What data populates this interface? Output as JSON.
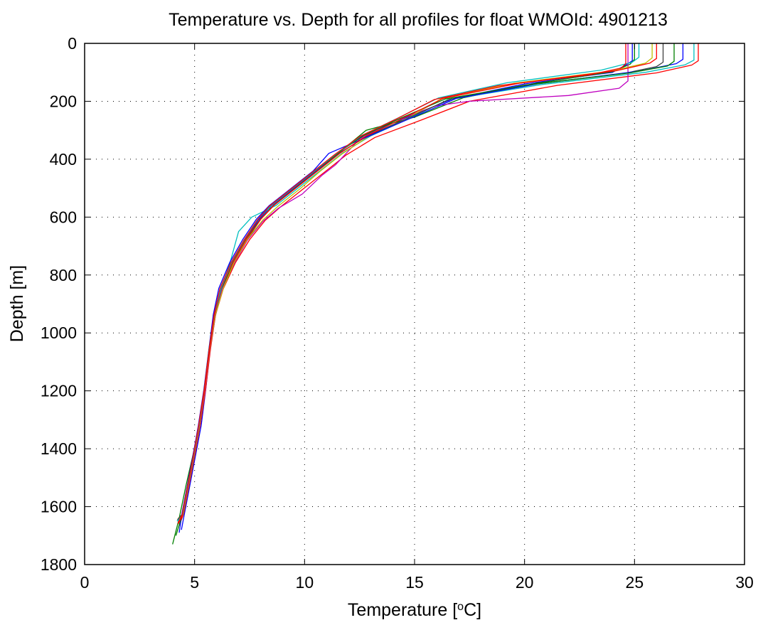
{
  "chart_data": {
    "type": "line",
    "title": "Temperature vs. Depth for all profiles for float WMOId: 4901213",
    "xlabel": {
      "prefix": "Temperature [",
      "superscript": "o",
      "suffix": "C]"
    },
    "ylabel": "Depth [m]",
    "xlim": [
      0,
      30
    ],
    "ylim": [
      0,
      1800
    ],
    "y_reversed": true,
    "x_ticks": [
      "0",
      "5",
      "10",
      "15",
      "20",
      "25",
      "30"
    ],
    "y_ticks": [
      "0",
      "200",
      "400",
      "600",
      "800",
      "1000",
      "1200",
      "1400",
      "1600",
      "1800"
    ],
    "grid": true,
    "colors": [
      "#0000ff",
      "#008000",
      "#ff0000",
      "#00bfbf",
      "#bf00bf",
      "#bfbf00",
      "#404040"
    ],
    "series": [
      {
        "color": "#0000ff",
        "x": [
          24.9,
          24.9,
          24.6,
          24.0,
          20.0,
          16.8,
          14.5,
          12.6,
          11.5,
          10.5,
          9.5,
          8.5,
          7.9,
          7.3,
          6.7,
          6.2,
          5.9,
          5.7,
          5.5,
          5.3,
          5.05,
          4.8,
          4.55,
          4.4
        ],
        "y": [
          0,
          60,
          75,
          100,
          140,
          190,
          260,
          320,
          380,
          440,
          500,
          560,
          610,
          680,
          760,
          850,
          940,
          1060,
          1200,
          1320,
          1420,
          1520,
          1620,
          1680
        ]
      },
      {
        "color": "#008000",
        "x": [
          25.0,
          25.0,
          24.8,
          24.0,
          20.5,
          17.2,
          15.0,
          12.8,
          11.6,
          10.6,
          9.6,
          8.6,
          8.0,
          7.4,
          6.8,
          6.25,
          5.95,
          5.7,
          5.45,
          5.2,
          4.9,
          4.6,
          4.3,
          4.0
        ],
        "y": [
          0,
          55,
          72,
          98,
          138,
          188,
          255,
          300,
          375,
          438,
          498,
          560,
          608,
          675,
          755,
          845,
          935,
          1055,
          1195,
          1325,
          1430,
          1530,
          1640,
          1730
        ]
      },
      {
        "color": "#ff0000",
        "x": [
          27.9,
          27.9,
          27.6,
          26.0,
          21.5,
          17.5,
          15.3,
          13.2,
          11.9,
          10.9,
          9.9,
          8.9,
          8.2,
          7.5,
          6.85,
          6.3,
          5.95,
          5.72,
          5.5,
          5.25,
          5.0,
          4.75,
          4.5,
          4.3
        ],
        "y": [
          0,
          60,
          75,
          102,
          145,
          200,
          265,
          325,
          385,
          445,
          505,
          565,
          612,
          678,
          758,
          848,
          938,
          1058,
          1198,
          1320,
          1425,
          1525,
          1625,
          1665
        ]
      },
      {
        "color": "#00bfbf",
        "x": [
          27.7,
          27.7,
          27.3,
          25.5,
          20.8,
          16.5,
          14.8,
          13.0,
          11.7,
          10.7,
          9.7,
          8.7,
          7.6,
          7.0,
          6.6,
          6.2,
          5.9,
          5.68,
          5.45,
          5.2,
          4.95,
          4.7,
          4.45,
          4.2
        ],
        "y": [
          0,
          58,
          74,
          100,
          142,
          195,
          258,
          320,
          380,
          440,
          500,
          560,
          600,
          650,
          760,
          850,
          940,
          1060,
          1200,
          1325,
          1430,
          1530,
          1630,
          1650
        ]
      },
      {
        "color": "#bf00bf",
        "x": [
          24.7,
          24.7,
          24.3,
          22.0,
          17.5,
          16.0,
          14.0,
          12.5,
          11.4,
          10.8,
          9.9,
          8.8,
          8.1,
          7.4,
          6.8,
          6.25,
          5.95,
          5.7,
          5.48,
          5.22,
          4.98,
          4.72,
          4.48,
          4.25
        ],
        "y": [
          0,
          130,
          155,
          180,
          200,
          215,
          270,
          330,
          420,
          455,
          520,
          570,
          615,
          680,
          760,
          850,
          940,
          1060,
          1200,
          1320,
          1425,
          1525,
          1625,
          1655
        ]
      },
      {
        "color": "#bfbf00",
        "x": [
          25.8,
          25.8,
          25.5,
          24.0,
          19.5,
          16.2,
          14.6,
          12.9,
          11.7,
          10.7,
          9.8,
          8.8,
          8.1,
          7.4,
          6.8,
          6.3,
          5.95,
          5.7,
          5.47,
          5.22,
          4.97,
          4.72,
          4.47,
          4.25
        ],
        "y": [
          0,
          50,
          68,
          95,
          138,
          192,
          262,
          322,
          382,
          442,
          502,
          562,
          610,
          676,
          756,
          846,
          936,
          1056,
          1196,
          1322,
          1428,
          1528,
          1628,
          1640
        ]
      },
      {
        "color": "#404040",
        "x": [
          26.3,
          26.3,
          26.0,
          24.5,
          20.0,
          16.6,
          14.7,
          12.9,
          11.6,
          10.6,
          9.6,
          8.6,
          8.0,
          7.35,
          6.75,
          6.22,
          5.92,
          5.68,
          5.46,
          5.21,
          4.96,
          4.71,
          4.46,
          4.22
        ],
        "y": [
          0,
          65,
          80,
          104,
          144,
          193,
          258,
          318,
          378,
          438,
          498,
          558,
          606,
          672,
          752,
          842,
          932,
          1052,
          1192,
          1318,
          1424,
          1524,
          1624,
          1645
        ]
      },
      {
        "color": "#0000ff",
        "x": [
          27.2,
          27.2,
          26.9,
          25.2,
          20.6,
          16.9,
          14.9,
          13.0,
          11.1,
          10.4,
          9.4,
          8.4,
          7.8,
          7.2,
          6.6,
          6.1,
          5.85,
          5.65,
          5.42,
          5.17,
          4.92,
          4.67,
          4.42,
          4.3
        ],
        "y": [
          0,
          55,
          70,
          96,
          140,
          190,
          256,
          318,
          380,
          440,
          500,
          560,
          608,
          676,
          756,
          846,
          936,
          1056,
          1196,
          1320,
          1426,
          1526,
          1626,
          1690
        ]
      },
      {
        "color": "#008000",
        "x": [
          26.8,
          26.8,
          26.5,
          24.8,
          20.2,
          16.4,
          14.4,
          12.7,
          11.5,
          10.5,
          9.5,
          8.5,
          7.9,
          7.3,
          6.7,
          6.18,
          5.9,
          5.66,
          5.44,
          5.19,
          4.94,
          4.69,
          4.44,
          4.15
        ],
        "y": [
          0,
          62,
          78,
          102,
          143,
          192,
          257,
          318,
          378,
          438,
          498,
          558,
          606,
          674,
          754,
          844,
          934,
          1054,
          1194,
          1322,
          1428,
          1528,
          1628,
          1700
        ]
      },
      {
        "color": "#ff0000",
        "x": [
          26.0,
          26.0,
          25.7,
          24.2,
          19.8,
          16.3,
          14.5,
          12.8,
          11.6,
          10.6,
          9.6,
          8.6,
          8.0,
          7.35,
          6.75,
          6.2,
          5.92,
          5.69,
          5.46,
          5.21,
          4.96,
          4.71,
          4.46,
          4.25
        ],
        "y": [
          0,
          52,
          68,
          94,
          137,
          190,
          258,
          320,
          380,
          440,
          500,
          560,
          608,
          676,
          756,
          846,
          936,
          1056,
          1196,
          1321,
          1427,
          1527,
          1627,
          1660
        ]
      },
      {
        "color": "#00bfbf",
        "x": [
          25.2,
          25.2,
          24.9,
          23.5,
          19.2,
          16.1,
          14.3,
          12.6,
          11.5,
          10.5,
          9.5,
          8.5,
          7.9,
          7.3,
          6.7,
          6.2,
          5.9,
          5.67,
          5.44,
          5.2,
          4.95,
          4.7,
          4.45,
          4.25
        ],
        "y": [
          0,
          48,
          65,
          92,
          136,
          188,
          256,
          318,
          378,
          438,
          498,
          558,
          606,
          674,
          754,
          844,
          934,
          1054,
          1194,
          1320,
          1426,
          1526,
          1626,
          1650
        ]
      },
      {
        "color": "#ff0000",
        "x": [
          24.6,
          24.6,
          24.4,
          23.0,
          18.8,
          15.9,
          14.2,
          12.5,
          11.4,
          10.4,
          9.4,
          8.4,
          7.85,
          7.25,
          6.65,
          6.15,
          5.88,
          5.66,
          5.43,
          5.18,
          4.93,
          4.68,
          4.43,
          4.25
        ],
        "y": [
          0,
          70,
          85,
          108,
          146,
          194,
          260,
          322,
          382,
          442,
          502,
          562,
          610,
          678,
          758,
          848,
          938,
          1058,
          1198,
          1322,
          1428,
          1528,
          1628,
          1655
        ]
      }
    ]
  }
}
